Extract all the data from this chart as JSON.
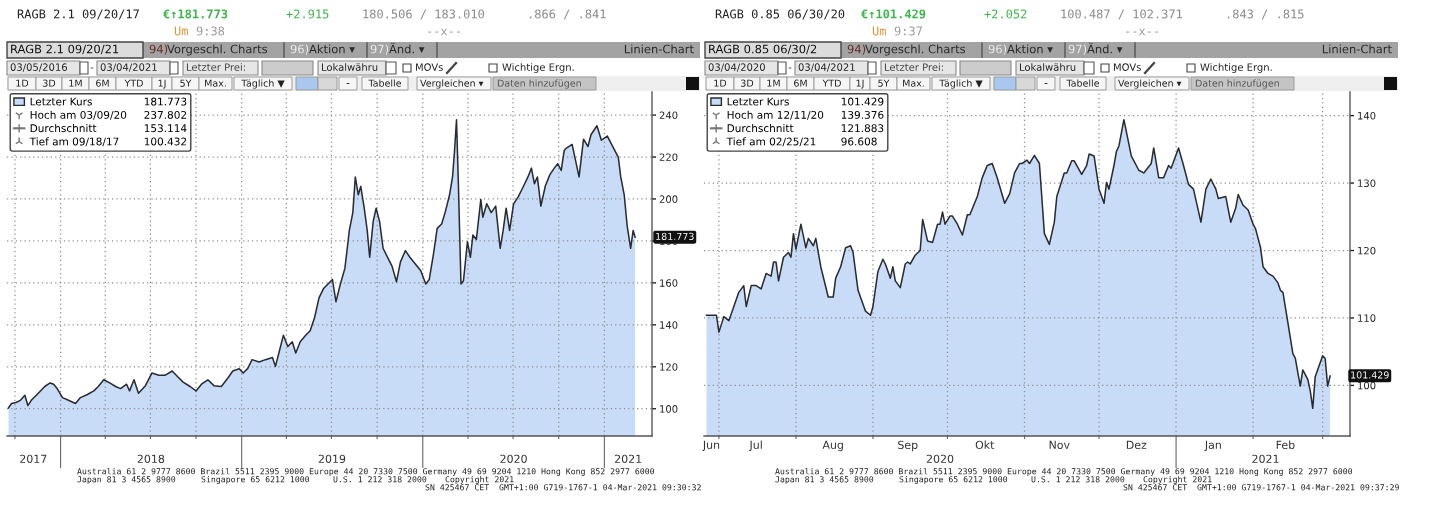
{
  "chart_data": [
    {
      "type": "area",
      "title": "RAGB 2.1 09/20/17",
      "x": [
        "2017-09-18",
        "2017-09-24",
        "2017-10-03",
        "2017-10-12",
        "2017-10-21",
        "2017-10-27",
        "2017-11-03",
        "2017-11-17",
        "2017-11-30",
        "2017-12-11",
        "2017-12-18",
        "2017-12-25",
        "2018-01-05",
        "2018-01-19",
        "2018-01-31",
        "2018-02-10",
        "2018-02-24",
        "2018-03-09",
        "2018-03-18",
        "2018-03-29",
        "2018-04-10",
        "2018-04-22",
        "2018-05-02",
        "2018-05-14",
        "2018-05-20",
        "2018-05-29",
        "2018-06-07",
        "2018-06-21",
        "2018-07-04",
        "2018-07-18",
        "2018-07-31",
        "2018-08-14",
        "2018-08-26",
        "2018-09-05",
        "2018-09-19",
        "2018-10-01",
        "2018-10-12",
        "2018-10-25",
        "2018-11-06",
        "2018-11-21",
        "2018-12-05",
        "2018-12-14",
        "2018-12-27",
        "2019-01-04",
        "2019-01-13",
        "2019-01-22",
        "2019-02-05",
        "2019-02-18",
        "2019-03-04",
        "2019-03-10",
        "2019-03-17",
        "2019-03-26",
        "2019-04-04",
        "2019-04-13",
        "2019-04-20",
        "2019-04-29",
        "2019-05-10",
        "2019-05-19",
        "2019-05-28",
        "2019-06-06",
        "2019-06-15",
        "2019-06-24",
        "2019-07-03",
        "2019-07-10",
        "2019-07-19",
        "2019-07-28",
        "2019-08-06",
        "2019-08-13",
        "2019-08-18",
        "2019-08-24",
        "2019-08-29",
        "2019-09-05",
        "2019-09-11",
        "2019-09-16",
        "2019-09-23",
        "2019-09-29",
        "2019-10-06",
        "2019-10-13",
        "2019-10-22",
        "2019-10-31",
        "2019-11-09",
        "2019-11-17",
        "2019-11-27",
        "2019-12-06",
        "2019-12-17",
        "2019-12-28",
        "2020-01-07",
        "2020-01-14",
        "2020-01-23",
        "2020-01-30",
        "2020-02-08",
        "2020-02-15",
        "2020-02-24",
        "2020-03-01",
        "2020-03-05",
        "2020-03-09",
        "2020-03-13",
        "2020-03-18",
        "2020-03-23",
        "2020-03-31",
        "2020-04-06",
        "2020-04-11",
        "2020-04-18",
        "2020-04-27",
        "2020-05-01",
        "2020-05-09",
        "2020-05-18",
        "2020-05-27",
        "2020-06-05",
        "2020-06-11",
        "2020-06-17",
        "2020-06-24",
        "2020-07-02",
        "2020-07-11",
        "2020-07-20",
        "2020-07-31",
        "2020-08-07",
        "2020-08-13",
        "2020-08-19",
        "2020-08-26",
        "2020-09-04",
        "2020-09-13",
        "2020-09-22",
        "2020-09-29",
        "2020-10-06",
        "2020-10-12",
        "2020-10-15",
        "2020-10-28",
        "2020-11-11",
        "2020-11-20",
        "2020-11-29",
        "2020-12-05",
        "2020-12-17",
        "2020-12-26",
        "2021-01-07",
        "2021-01-20",
        "2021-01-29",
        "2021-02-03",
        "2021-02-10",
        "2021-02-16",
        "2021-02-23",
        "2021-02-28",
        "2021-03-04"
      ],
      "series": [
        {
          "name": "Letzter Kurs",
          "color": "#c8dcf8",
          "values": [
            100.4,
            102.5,
            103,
            104,
            106.4,
            101.5,
            104,
            107.4,
            110.6,
            112.3,
            111.7,
            109.6,
            105.3,
            103.8,
            102.5,
            105.3,
            106.8,
            108.5,
            110.6,
            113.8,
            112.3,
            110.6,
            109.6,
            111.7,
            108.5,
            113.8,
            107.4,
            111,
            117,
            116,
            116,
            118,
            115,
            112.7,
            110.6,
            108.5,
            111.7,
            113.8,
            111,
            110.6,
            114.9,
            118,
            119.1,
            117,
            119.1,
            123.4,
            122.3,
            123.4,
            124.4,
            120.2,
            126.6,
            135,
            129.7,
            131.9,
            126.6,
            131.9,
            135,
            137.2,
            143.5,
            153,
            157.3,
            159.5,
            161.6,
            151,
            159.5,
            166.9,
            185,
            193.5,
            210.5,
            202,
            206,
            195.6,
            185,
            172.2,
            189.2,
            195.6,
            189.2,
            176.5,
            172.2,
            168,
            160.5,
            170,
            175.4,
            172.2,
            169,
            165.8,
            159.5,
            161.6,
            174.4,
            186,
            188.1,
            193.5,
            202,
            210.5,
            223,
            237.8,
            205,
            159.5,
            161,
            179.6,
            172.2,
            182.8,
            180.7,
            199.8,
            191.3,
            197.7,
            193.5,
            196.6,
            176.5,
            185,
            195.6,
            185,
            197.7,
            200.9,
            205.1,
            210.5,
            214.7,
            207.3,
            210.5,
            196.6,
            206.2,
            211.5,
            214.7,
            216.8,
            213.6,
            223,
            224,
            226,
            210.5,
            228.5,
            225,
            230.6,
            234.9,
            228,
            230,
            224,
            220,
            210.5,
            202,
            187,
            176.5,
            185,
            181.8
          ]
        }
      ],
      "xlim": [
        "2017-09-15",
        "2021-04-07"
      ],
      "xticks": [
        {
          "value": "2017-10-01",
          "label": null
        },
        {
          "value": "2017-11-07",
          "label": "2017"
        },
        {
          "value": "2018-01-01",
          "label": null
        },
        {
          "value": "2018-04-01",
          "label": null
        },
        {
          "value": "2018-07-01",
          "label": null
        },
        {
          "value": "2018-07-02",
          "label": "2018"
        },
        {
          "value": "2018-10-01",
          "label": null
        },
        {
          "value": "2019-01-01",
          "label": null
        },
        {
          "value": "2019-04-01",
          "label": null
        },
        {
          "value": "2019-07-01",
          "label": null
        },
        {
          "value": "2019-07-02",
          "label": "2019"
        },
        {
          "value": "2019-10-01",
          "label": null
        },
        {
          "value": "2020-01-01",
          "label": null
        },
        {
          "value": "2020-04-01",
          "label": null
        },
        {
          "value": "2020-07-01",
          "label": null
        },
        {
          "value": "2020-07-02",
          "label": "2020"
        },
        {
          "value": "2020-10-01",
          "label": null
        },
        {
          "value": "2021-01-01",
          "label": null
        },
        {
          "value": "2021-02-18",
          "label": "2021"
        }
      ],
      "ylim": [
        87,
        251
      ],
      "yticks": [
        100,
        120,
        140,
        160,
        180,
        200,
        220,
        240
      ],
      "grid": true,
      "legend": "top left",
      "annotations": [
        "€↑181.773",
        "+2.915",
        "180.506 / 183.010",
        ".866 / .841",
        "Um",
        "9:38",
        "--x--",
        "RAGB 2.1 09/20/21",
        "94)",
        "Vorgeschl. Charts",
        "96)",
        "Aktion ▾",
        "97)",
        "Änd. ▾",
        "Linien-Chart",
        "03/05/2016",
        "-",
        "03/04/2021",
        "Letzter Prei:",
        "Lokalwähru",
        "MOVs",
        "Wichtige Ergn.",
        "1D",
        "3D",
        "1M",
        "6M",
        "YTD",
        "1J",
        "5Y",
        "Max.",
        "Täglich ▼",
        "Tabelle",
        "Vergleichen ▾",
        "Daten hinzufügen",
        "181.773",
        "Hoch am 03/09/20",
        "237.802",
        "Durchschnitt",
        "153.114",
        "Tief am 09/18/17",
        "100.432",
        {
          "text": "181.773",
          "x": "2021-03-04",
          "y": 181.773
        },
        "Australia 61 2 9777 8600 Brazil 5511 2395 9000 Europe 44 20 7330 7500 Germany 49 69 9204 1210 Hong Kong 852 2977 6000",
        "Japan 81 3 4565 8900",
        "Singapore 65 6212 1000",
        "U.S. 1 212 318 2000",
        "Copyright 2021",
        "SN 425467 CET  GMT+1:00 G719-1767-1 04-Mar-2021 09:30:32"
      ]
    },
    {
      "type": "area",
      "title": "RAGB 0.85 06/30/20",
      "x": [
        "2020-06-26",
        "2020-06-30",
        "2020-07-01",
        "2020-07-03",
        "2020-07-05",
        "2020-07-07",
        "2020-07-09",
        "2020-07-11",
        "2020-07-12",
        "2020-07-14",
        "2020-07-16",
        "2020-07-18",
        "2020-07-20",
        "2020-07-22",
        "2020-07-23",
        "2020-07-24",
        "2020-07-25",
        "2020-07-27",
        "2020-07-29",
        "2020-07-30",
        "2020-07-31",
        "2020-08-01",
        "2020-08-03",
        "2020-08-05",
        "2020-08-06",
        "2020-08-08",
        "2020-08-09",
        "2020-08-11",
        "2020-08-14",
        "2020-08-16",
        "2020-08-17",
        "2020-08-19",
        "2020-08-21",
        "2020-08-23",
        "2020-08-24",
        "2020-08-26",
        "2020-08-29",
        "2020-08-31",
        "2020-09-01",
        "2020-09-03",
        "2020-09-05",
        "2020-09-06",
        "2020-09-08",
        "2020-09-09",
        "2020-09-10",
        "2020-09-12",
        "2020-09-14",
        "2020-09-15",
        "2020-09-16",
        "2020-09-18",
        "2020-09-20",
        "2020-09-21",
        "2020-09-23",
        "2020-09-25",
        "2020-09-27",
        "2020-09-28",
        "2020-09-29",
        "2020-09-30",
        "2020-10-02",
        "2020-10-03",
        "2020-10-05",
        "2020-10-07",
        "2020-10-09",
        "2020-10-10",
        "2020-10-13",
        "2020-10-15",
        "2020-10-17",
        "2020-10-19",
        "2020-10-21",
        "2020-10-24",
        "2020-10-26",
        "2020-10-28",
        "2020-10-30",
        "2020-10-31",
        "2020-11-02",
        "2020-11-03",
        "2020-11-05",
        "2020-11-07",
        "2020-11-08",
        "2020-11-09",
        "2020-11-11",
        "2020-11-13",
        "2020-11-14",
        "2020-11-17",
        "2020-11-18",
        "2020-11-20",
        "2020-11-21",
        "2020-11-24",
        "2020-11-26",
        "2020-11-27",
        "2020-11-29",
        "2020-12-01",
        "2020-12-03",
        "2020-12-04",
        "2020-12-05",
        "2020-12-07",
        "2020-12-08",
        "2020-12-09",
        "2020-12-11",
        "2020-12-14",
        "2020-12-17",
        "2020-12-19",
        "2020-12-22",
        "2020-12-23",
        "2020-12-25",
        "2020-12-27",
        "2020-12-29",
        "2020-12-30",
        "2021-01-02",
        "2021-01-04",
        "2021-01-06",
        "2021-01-08",
        "2021-01-11",
        "2021-01-13",
        "2021-01-15",
        "2021-01-17",
        "2021-01-18",
        "2021-01-21",
        "2021-01-23",
        "2021-01-25",
        "2021-01-26",
        "2021-01-28",
        "2021-01-30",
        "2021-02-01",
        "2021-02-02",
        "2021-02-04",
        "2021-02-05",
        "2021-02-07",
        "2021-02-09",
        "2021-02-11",
        "2021-02-12",
        "2021-02-13",
        "2021-02-15",
        "2021-02-17",
        "2021-02-18",
        "2021-02-19",
        "2021-02-20",
        "2021-02-21",
        "2021-02-23",
        "2021-02-24",
        "2021-02-25",
        "2021-02-26",
        "2021-03-01",
        "2021-03-02",
        "2021-03-03",
        "2021-03-04"
      ],
      "series": [
        {
          "name": "Letzter Kurs",
          "color": "#c8dcf8",
          "values": [
            110.4,
            110.4,
            107.9,
            110.2,
            109.6,
            111.7,
            113.8,
            114.8,
            111.7,
            114.8,
            114.8,
            114.3,
            116.6,
            116.2,
            118.3,
            118.3,
            115.5,
            119,
            119.7,
            119,
            122.5,
            120.2,
            123.9,
            120.4,
            121.8,
            120.7,
            121.8,
            117.6,
            113.1,
            113.1,
            115.9,
            117.6,
            120.4,
            120.7,
            119.7,
            114.1,
            111,
            110.4,
            111.7,
            116.9,
            118.7,
            118,
            115.9,
            117.6,
            115.5,
            114.5,
            118,
            118.3,
            118,
            119.3,
            120,
            124.6,
            121.4,
            121.2,
            123.9,
            123.9,
            125.7,
            123.9,
            125.1,
            125.1,
            123.9,
            122.3,
            125.3,
            125.3,
            128,
            130.8,
            132.6,
            132.9,
            130.8,
            127,
            128.4,
            131.5,
            132.9,
            132.9,
            133.4,
            132.9,
            134.1,
            132.9,
            127.7,
            122.5,
            120.9,
            124.2,
            128,
            131.5,
            131.5,
            133.3,
            133.3,
            131.3,
            132.6,
            134.3,
            134,
            129.1,
            127,
            130.1,
            129.1,
            132.6,
            134.7,
            135.5,
            139.4,
            134,
            131.9,
            131.5,
            132.9,
            135.2,
            130.8,
            130.8,
            132.6,
            132.2,
            135.2,
            132.6,
            129.8,
            129.1,
            124.2,
            129.1,
            130.6,
            129.1,
            127.7,
            128,
            124.2,
            126.3,
            128.3,
            126.7,
            126,
            123.9,
            123.2,
            120.4,
            117.6,
            116.6,
            116.2,
            115.2,
            114.1,
            113.8,
            109.3,
            104.7,
            104,
            101.9,
            99.9,
            102.3,
            100.9,
            99.2,
            96.6,
            101.3,
            104.4,
            104,
            99.9,
            101.4
          ]
        }
      ],
      "xlim": [
        "2020-06-25",
        "2021-03-12"
      ],
      "xticks": [
        {
          "value": "2020-06-28",
          "label": "Jun"
        },
        {
          "value": "2020-07-01",
          "label": null
        },
        {
          "value": "2020-07-16",
          "label": "Jul"
        },
        {
          "value": "2020-08-01",
          "label": null
        },
        {
          "value": "2020-08-16",
          "label": "Aug"
        },
        {
          "value": "2020-09-01",
          "label": null
        },
        {
          "value": "2020-09-15",
          "label": "Sep"
        },
        {
          "value": "2020-10-01",
          "label": null
        },
        {
          "value": "2020-10-16",
          "label": "Okt"
        },
        {
          "value": "2020-11-01",
          "label": null
        },
        {
          "value": "2020-11-15",
          "label": "Nov"
        },
        {
          "value": "2020-12-01",
          "label": null
        },
        {
          "value": "2020-12-16",
          "label": "Dez"
        },
        {
          "value": "2021-01-01",
          "label": null
        },
        {
          "value": "2021-01-16",
          "label": "Jan"
        },
        {
          "value": "2021-02-01",
          "label": null
        },
        {
          "value": "2021-02-14",
          "label": "Feb"
        },
        {
          "value": "2021-03-01",
          "label": null
        }
      ],
      "x2lim": [
        "2020-06-25",
        "2021-03-12"
      ],
      "x2ticks": [
        {
          "value": "2020-09-28",
          "label": "2020"
        },
        {
          "value": "2021-02-06",
          "label": "2021"
        }
      ],
      "ylim": [
        92.5,
        143.5
      ],
      "yticks": [
        100,
        110,
        120,
        130,
        140
      ],
      "grid": true,
      "legend": "top left",
      "annotations": [
        "€↑101.429",
        "+2.052",
        "100.487 / 102.371",
        ".843 / .815",
        "Um",
        "9:37",
        "--x--",
        "RAGB 0.85 06/30/2",
        "94)",
        "Vorgeschl. Charts",
        "96)",
        "Aktion ▾",
        "97)",
        "Änd. ▾",
        "Linien-Chart",
        "03/04/2020",
        "-",
        "03/04/2021",
        "Letzter Prei:",
        "Lokalwähru",
        "MOVs",
        "Wichtige Ergn.",
        "1D",
        "3D",
        "1M",
        "6M",
        "YTD",
        "1J",
        "5Y",
        "Max.",
        "Täglich ▼",
        "Tabelle",
        "Vergleichen ▾",
        "Daten hinzufügen",
        "101.429",
        "Hoch am 12/11/20",
        "139.376",
        "Durchschnitt",
        "121.883",
        "Tief am 02/25/21",
        "96.608",
        {
          "text": "101.429",
          "x": "2021-03-04",
          "y": 101.429
        },
        "Australia 61 2 9777 8600 Brazil 5511 2395 9000 Europe 44 20 7330 7500 Germany 49 69 9204 1210 Hong Kong 852 2977 6000",
        "Japan 81 3 4565 8900",
        "Singapore 65 6212 1000",
        "U.S. 1 212 318 2000",
        "Copyright 2021",
        "SN 425467 CET  GMT+1:00 G719-1767-1 04-Mar-2021 09:37:29"
      ]
    }
  ]
}
